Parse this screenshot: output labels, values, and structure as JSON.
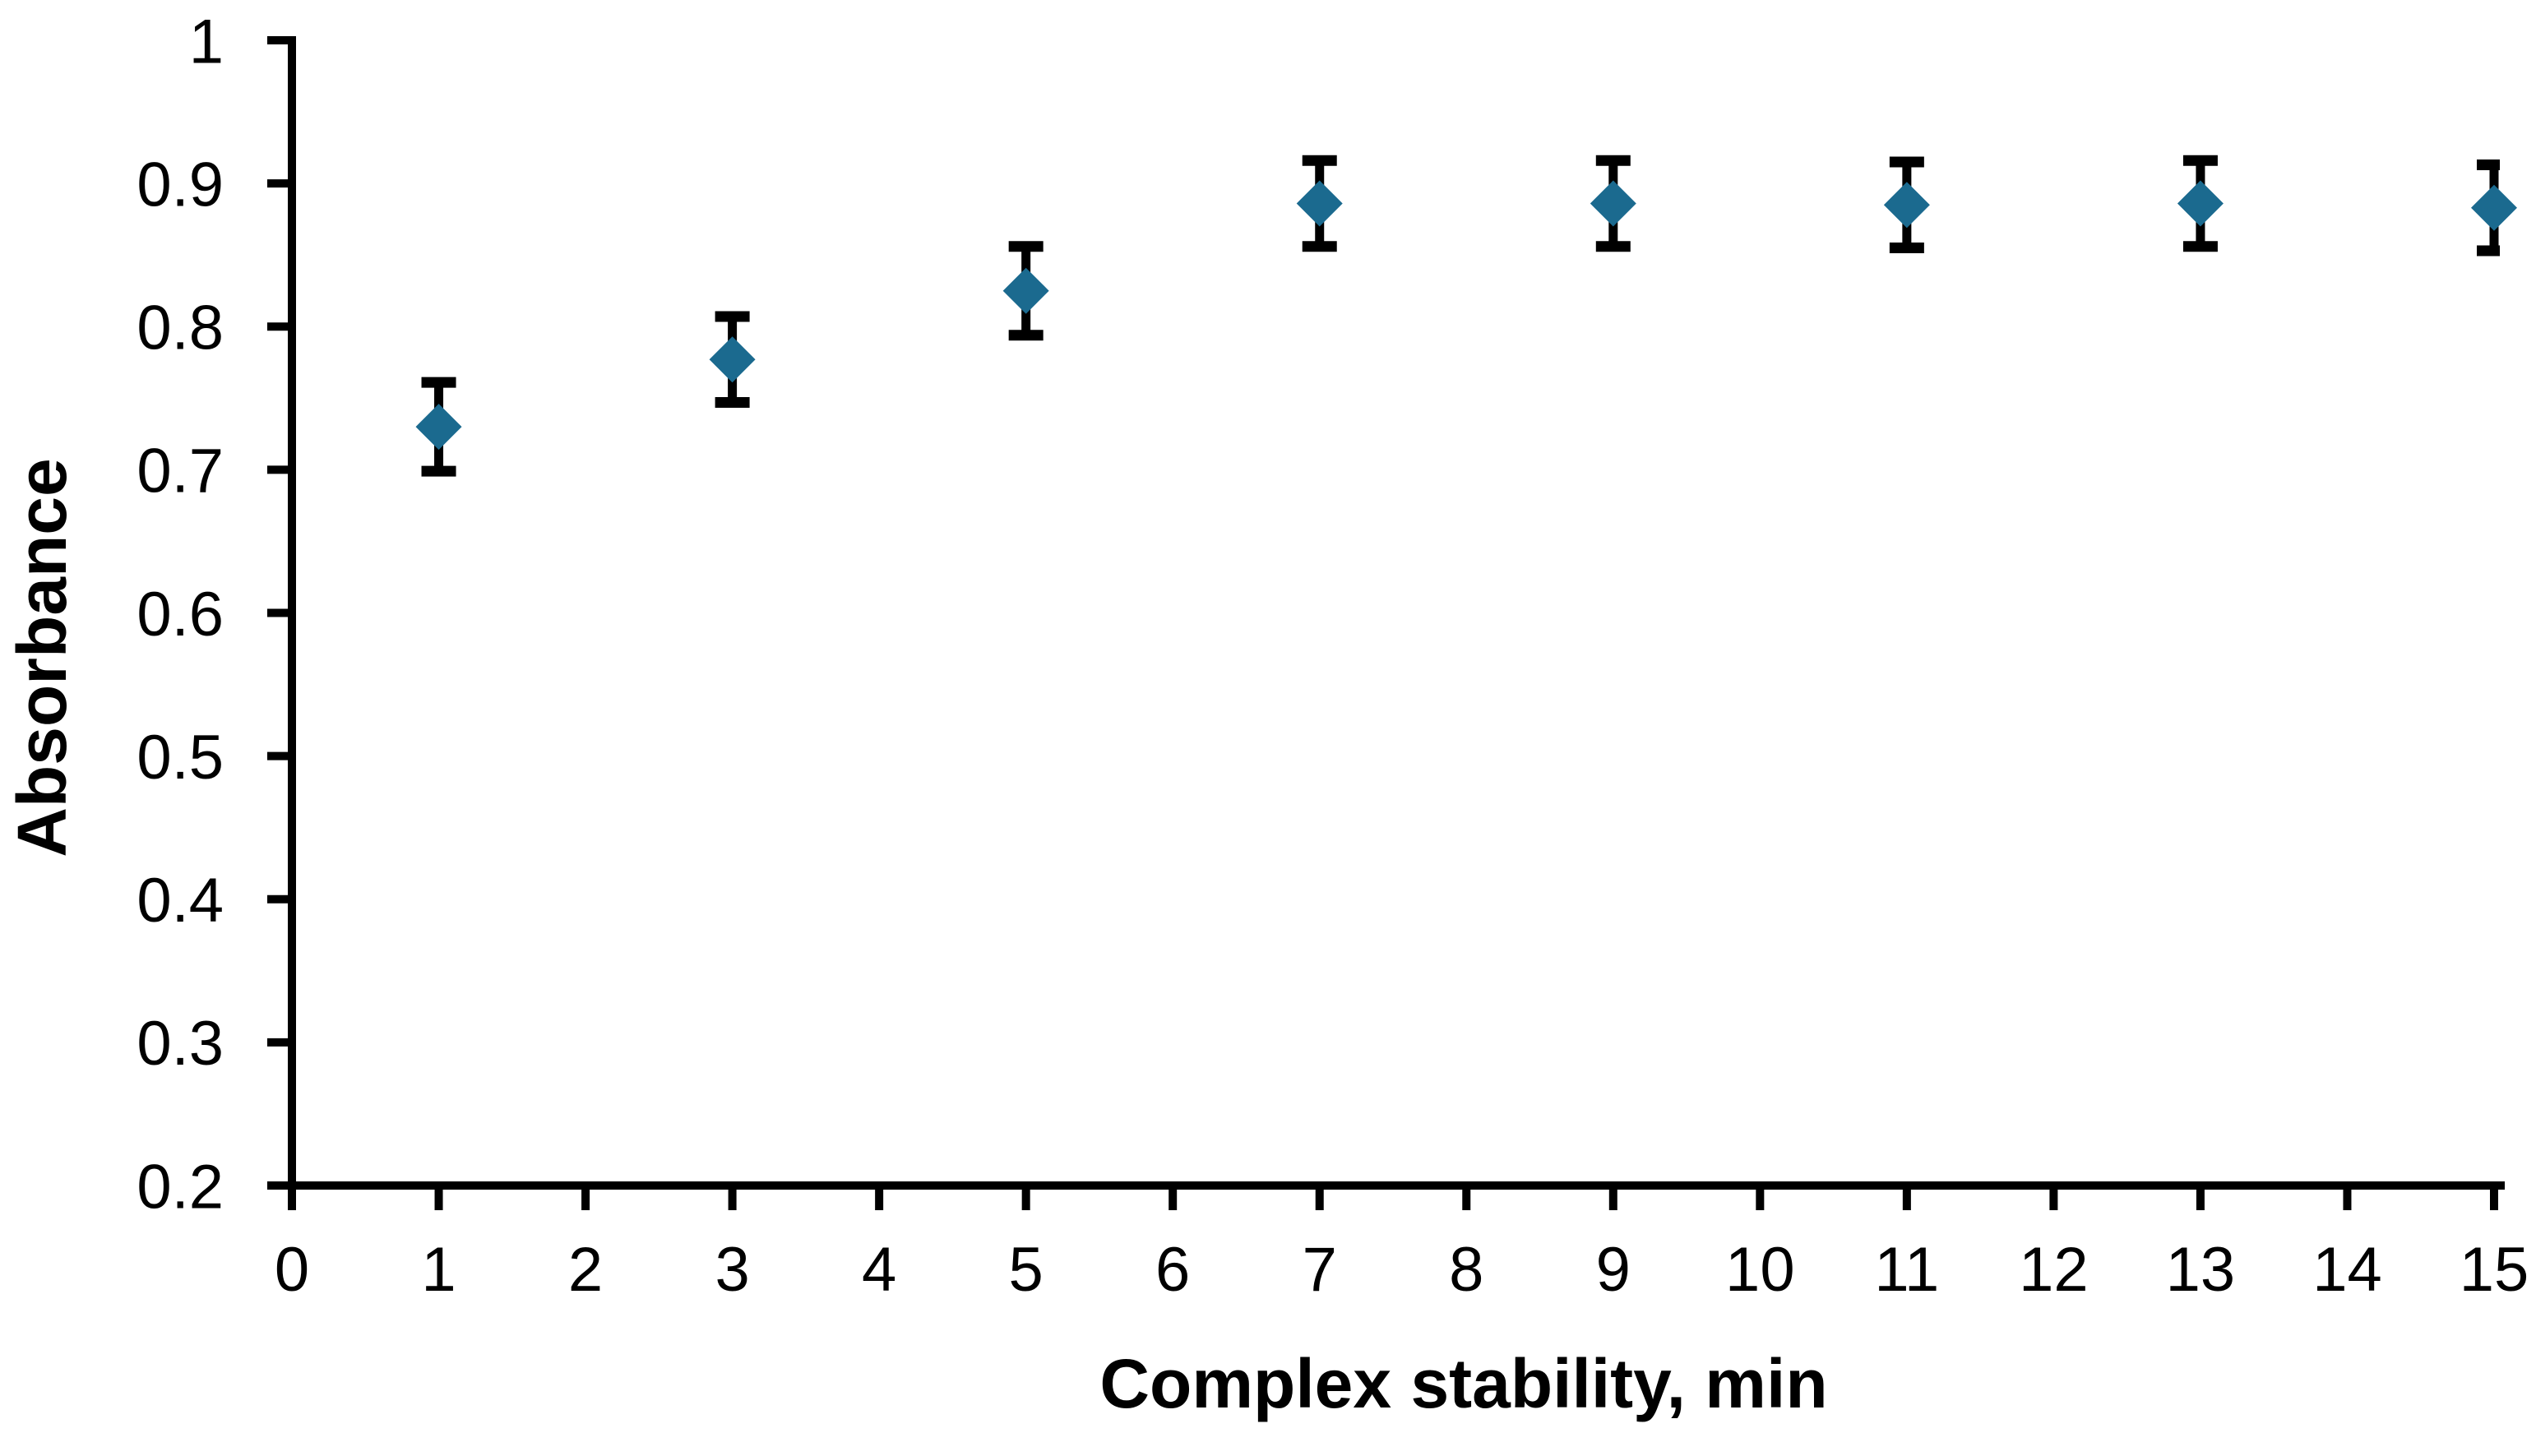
{
  "page": {
    "background_color": "#ffffff"
  },
  "chart_data": {
    "type": "scatter",
    "title": "",
    "xlabel": "Complex stability, min",
    "ylabel": "Absorbance",
    "x": [
      1,
      3,
      5,
      7,
      9,
      11,
      13,
      15
    ],
    "y": [
      0.73,
      0.777,
      0.825,
      0.886,
      0.886,
      0.885,
      0.886,
      0.883
    ],
    "y_err": [
      0.031,
      0.03,
      0.031,
      0.03,
      0.03,
      0.03,
      0.03,
      0.03
    ],
    "xlim": [
      0,
      15
    ],
    "ylim": [
      0.2,
      1.0
    ],
    "x_tick_values": [
      0,
      1,
      2,
      3,
      4,
      5,
      6,
      7,
      8,
      9,
      10,
      11,
      12,
      13,
      14,
      15
    ],
    "x_tick_labels": [
      "0",
      "1",
      "2",
      "3",
      "4",
      "5",
      "6",
      "7",
      "8",
      "9",
      "10",
      "11",
      "12",
      "13",
      "14",
      "15"
    ],
    "y_tick_values": [
      0.2,
      0.3,
      0.4,
      0.5,
      0.6,
      0.7,
      0.8,
      0.9,
      1.0
    ],
    "y_tick_labels": [
      "0.2",
      "0.3",
      "0.4",
      "0.5",
      "0.6",
      "0.7",
      "0.8",
      "0.9",
      "1"
    ],
    "grid": false,
    "legend": false,
    "marker": "diamond",
    "colors": {
      "marker": "#1b6a8f",
      "error_bar": "#000000",
      "axis": "#000000",
      "text": "#000000",
      "background": "#ffffff"
    }
  }
}
